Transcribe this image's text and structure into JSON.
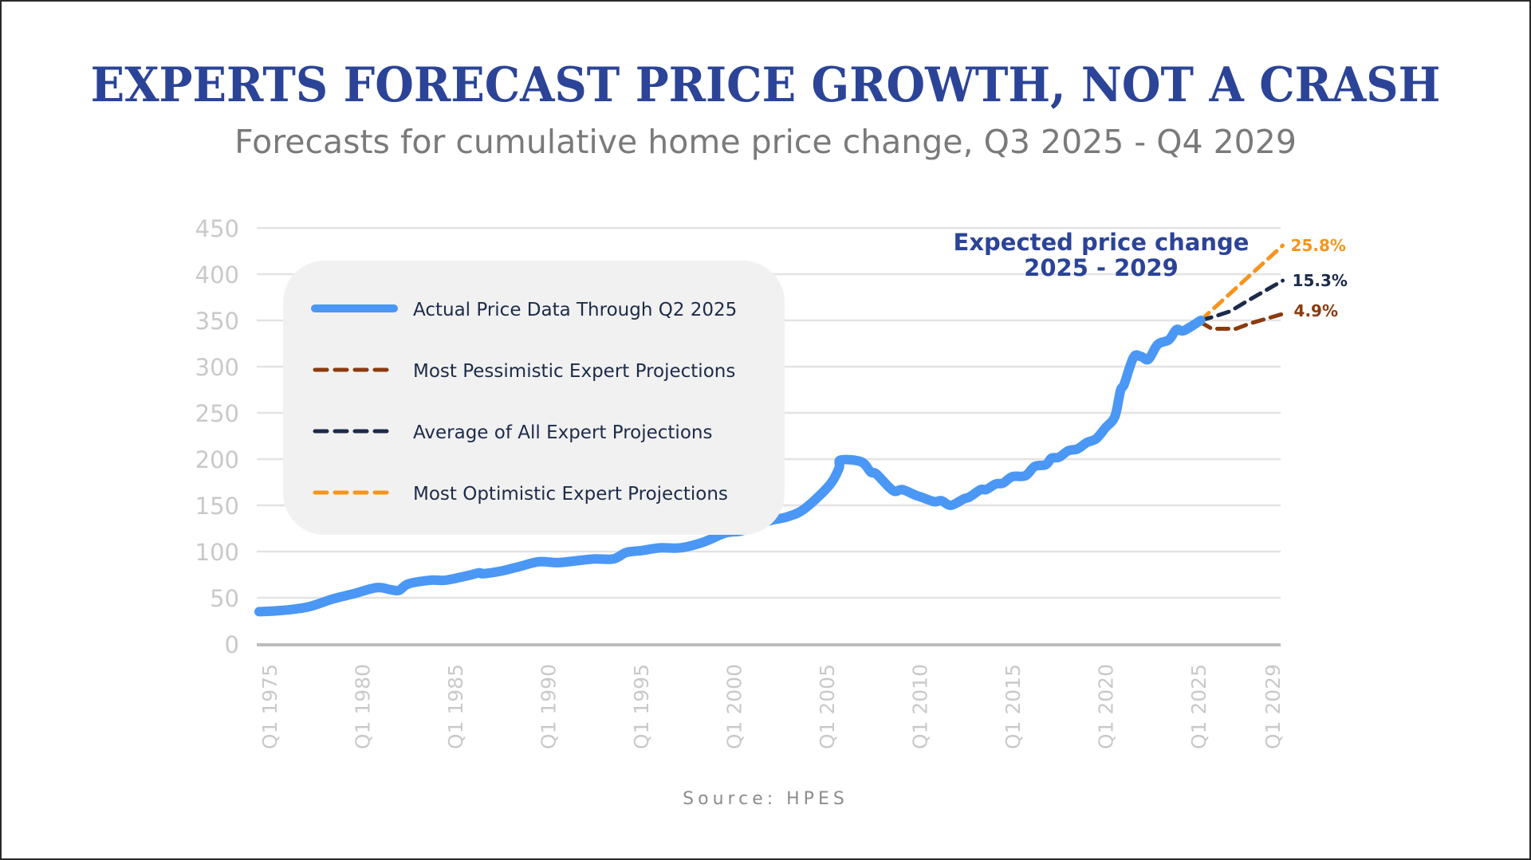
{
  "header": {
    "title": "EXPERTS FORECAST PRICE GROWTH, NOT A CRASH",
    "subtitle": "Forecasts for cumulative home price change, Q3 2025 - Q4 2029"
  },
  "footer": {
    "source": "Source: HPES"
  },
  "colors": {
    "title": "#2b4497",
    "actual": "#4a97f5",
    "pessimistic": "#8b3a0f",
    "average": "#1c2b4a",
    "optimistic": "#f7941d",
    "grid": "#e3e3e3",
    "axis": "#bdbdbd",
    "legend_bg": "#f1f1f1"
  },
  "chart_data": {
    "type": "line",
    "title": "EXPERTS FORECAST PRICE GROWTH, NOT A CRASH",
    "subtitle": "Forecasts for cumulative home price change, Q3 2025 - Q4 2029",
    "xlabel": "",
    "ylabel": "",
    "ylim": [
      0,
      450
    ],
    "xlim": [
      1975,
      2029.9
    ],
    "grid": true,
    "legend_position": "top-left",
    "y_ticks": [
      "0",
      "50",
      "100",
      "150",
      "200",
      "250",
      "300",
      "350",
      "400",
      "450"
    ],
    "y_tick_values": [
      0,
      50,
      100,
      150,
      200,
      250,
      300,
      350,
      400,
      450
    ],
    "x_ticks": [
      {
        "label": "Q1 1975",
        "year": 1975
      },
      {
        "label": "Q1 1980",
        "year": 1980
      },
      {
        "label": "Q1 1985",
        "year": 1985
      },
      {
        "label": "Q1 1990",
        "year": 1990
      },
      {
        "label": "Q1 1995",
        "year": 1995
      },
      {
        "label": "Q1 2000",
        "year": 2000
      },
      {
        "label": "Q1 2005",
        "year": 2005
      },
      {
        "label": "Q1 2010",
        "year": 2010
      },
      {
        "label": "Q1 2015",
        "year": 2015
      },
      {
        "label": "Q1 2020",
        "year": 2020
      },
      {
        "label": "Q1 2025",
        "year": 2025
      },
      {
        "label": "Q1 2029",
        "year": 2029
      }
    ],
    "series": [
      {
        "name": "Actual Price Data Through Q2 2025",
        "style": "solid",
        "color": "#4a97f5",
        "x": [
          1975.0,
          1976.0,
          1977.0,
          1977.8,
          1979.0,
          1980.0,
          1981.3,
          1982.0,
          1982.5,
          1983.0,
          1984.2,
          1985.0,
          1986.2,
          1986.8,
          1987.0,
          1988.0,
          1989.0,
          1990.0,
          1991.0,
          1992.0,
          1993.0,
          1994.0,
          1994.7,
          1995.5,
          1996.5,
          1997.6,
          1998.8,
          2000.0,
          2000.8,
          2001.3,
          2002.3,
          2003.4,
          2004.3,
          2005.6,
          2006.1,
          2006.2,
          2007.3,
          2007.8,
          2008.1,
          2009.0,
          2009.5,
          2010.2,
          2010.5,
          2011.2,
          2011.6,
          2012.1,
          2012.8,
          2013.1,
          2013.7,
          2014.0,
          2014.5,
          2014.9,
          2015.4,
          2016.1,
          2016.6,
          2017.2,
          2017.5,
          2017.9,
          2018.4,
          2018.9,
          2019.4,
          2019.9,
          2020.4,
          2020.9,
          2021.2,
          2021.4,
          2021.9,
          2022.3,
          2022.7,
          2023.2,
          2023.8,
          2024.2,
          2024.6,
          2025.5
        ],
        "y": [
          35,
          36,
          38,
          41,
          49,
          54,
          61,
          59,
          58,
          65,
          69,
          69,
          74,
          77,
          76,
          79,
          84,
          89,
          88,
          90,
          92,
          92,
          99,
          101,
          104,
          104,
          110,
          120,
          122,
          126,
          133,
          138,
          147,
          172,
          190,
          199,
          197,
          186,
          184,
          166,
          167,
          161,
          159,
          154,
          155,
          150,
          157,
          159,
          167,
          167,
          173,
          174,
          181,
          182,
          192,
          194,
          201,
          202,
          209,
          211,
          218,
          222,
          234,
          246,
          274,
          281,
          310,
          311,
          308,
          324,
          329,
          340,
          339,
          350
        ]
      },
      {
        "name": "Most Pessimistic Expert Projections",
        "style": "dashed",
        "color": "#8b3a0f",
        "x": [
          2025.5,
          2026.1,
          2027.4,
          2028.2,
          2029.9
        ],
        "y": [
          348,
          341,
          341,
          347,
          357
        ],
        "end_label": "4.9%"
      },
      {
        "name": "Average of All Expert Projections",
        "style": "dashed",
        "color": "#1c2b4a",
        "x": [
          2025.5,
          2026.2,
          2027.1,
          2028.0,
          2029.9
        ],
        "y": [
          350,
          354,
          360,
          371,
          393
        ],
        "end_label": "15.3%"
      },
      {
        "name": "Most Optimistic Expert Projections",
        "style": "dashed",
        "color": "#f7941d",
        "x": [
          2025.5,
          2029.9
        ],
        "y": [
          350,
          431
        ],
        "end_label": "25.8%"
      }
    ],
    "annotations": [
      {
        "text": "Expected price change",
        "line": 1
      },
      {
        "text": "2025 - 2029",
        "line": 2
      }
    ],
    "source": "Source: HPES"
  }
}
